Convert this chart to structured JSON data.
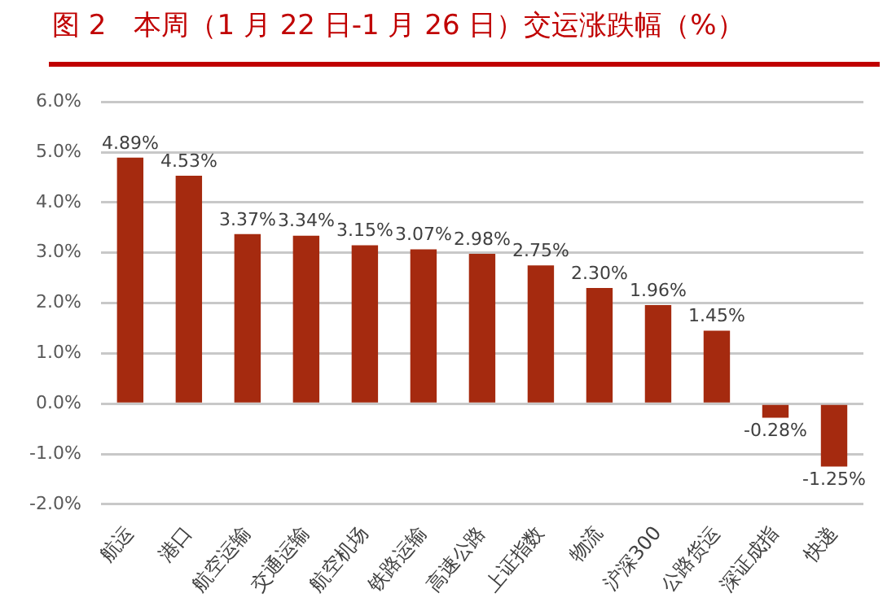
{
  "chart_data": {
    "type": "bar",
    "title": "图 2　本周（1 月 22 日-1 月 26 日）交运涨跌幅（%）",
    "categories": [
      "航运",
      "港口",
      "航空运输",
      "交通运输",
      "航空机场",
      "铁路运输",
      "高速公路",
      "上证指数",
      "物流",
      "沪深300",
      "公路货运",
      "深证成指",
      "快递"
    ],
    "values": [
      4.89,
      4.53,
      3.37,
      3.34,
      3.15,
      3.07,
      2.98,
      2.75,
      2.3,
      1.96,
      1.45,
      -0.28,
      -1.25
    ],
    "value_labels": [
      "4.89%",
      "4.53%",
      "3.37%",
      "3.34%",
      "3.15%",
      "3.07%",
      "2.98%",
      "2.75%",
      "2.30%",
      "1.96%",
      "1.45%",
      "-0.28%",
      "-1.25%"
    ],
    "color": "#a52a0f",
    "ylim": [
      -2,
      6
    ],
    "yticks": [
      {
        "value": -2,
        "label": "-2.0%"
      },
      {
        "value": -1,
        "label": "-1.0%"
      },
      {
        "value": 0,
        "label": "0.0%"
      },
      {
        "value": 1,
        "label": "1.0%"
      },
      {
        "value": 2,
        "label": "2.0%"
      },
      {
        "value": 3,
        "label": "3.0%"
      },
      {
        "value": 4,
        "label": "4.0%"
      },
      {
        "value": 5,
        "label": "5.0%"
      },
      {
        "value": 6,
        "label": "6.0%"
      }
    ],
    "grid": "y",
    "legend": false
  }
}
